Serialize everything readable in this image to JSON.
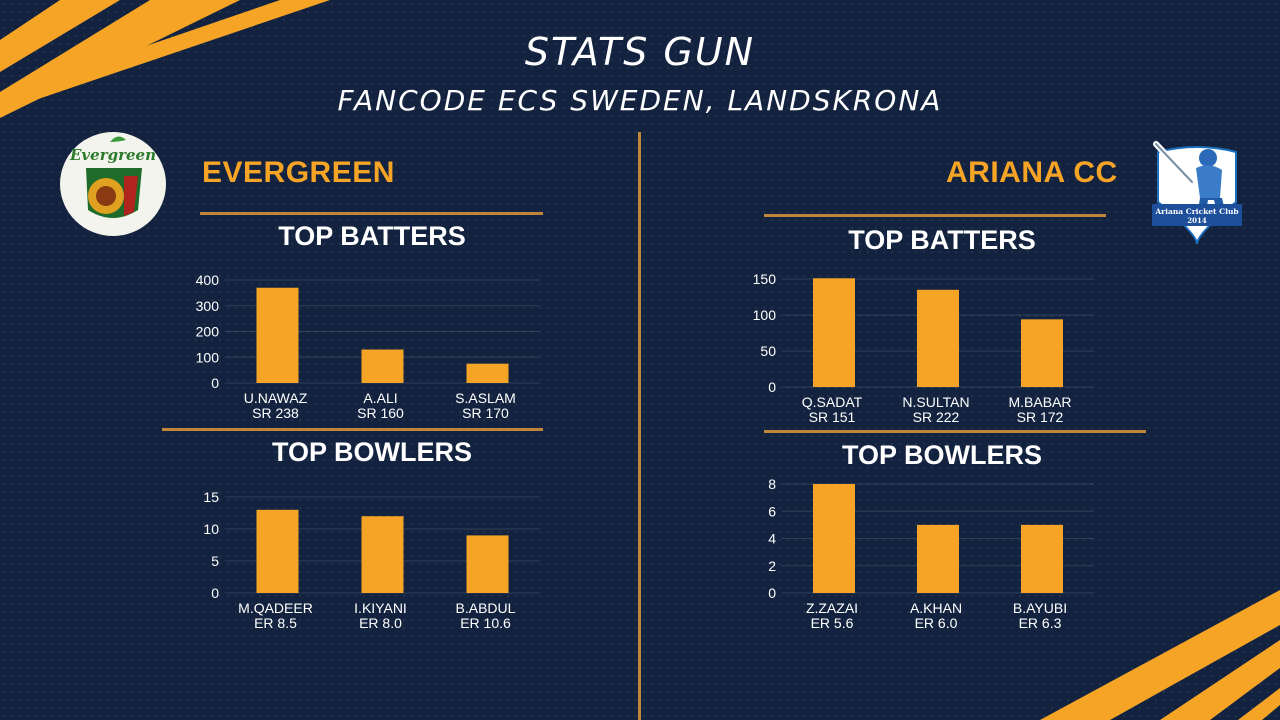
{
  "header": {
    "title": "STATS GUN",
    "subtitle": "FANCODE ECS SWEDEN, LANDSKRONA"
  },
  "colors": {
    "background": "#13233f",
    "accent": "#f5a425",
    "divider": "#c0873a",
    "text": "#ffffff"
  },
  "teams": [
    {
      "name": "EVERGREEN",
      "logo_text": "Evergreen"
    },
    {
      "name": "ARIANA CC",
      "logo_text": "Ariana Cricket Club 2014"
    }
  ],
  "sections": {
    "batters_title": "TOP BATTERS",
    "bowlers_title": "TOP BOWLERS"
  },
  "chart_data": [
    {
      "id": "evergreen-batters",
      "type": "bar",
      "title": "TOP BATTERS",
      "categories": [
        "U.NAWAZ",
        "A.ALI",
        "S.ASLAM"
      ],
      "sublabels": [
        "SR 238",
        "SR 160",
        "SR 170"
      ],
      "values": [
        370,
        130,
        75
      ],
      "ylim": [
        0,
        400
      ],
      "yticks": [
        0,
        100,
        200,
        300,
        400
      ],
      "grid": true
    },
    {
      "id": "evergreen-bowlers",
      "type": "bar",
      "title": "TOP BOWLERS",
      "categories": [
        "M.QADEER",
        "I.KIYANI",
        "B.ABDUL"
      ],
      "sublabels": [
        "ER 8.5",
        "ER 8.0",
        "ER 10.6"
      ],
      "values": [
        13,
        12,
        9
      ],
      "ylim": [
        0,
        15
      ],
      "yticks": [
        0,
        5,
        10,
        15
      ],
      "grid": true
    },
    {
      "id": "ariana-batters",
      "type": "bar",
      "title": "TOP BATTERS",
      "categories": [
        "Q.SADAT",
        "N.SULTAN",
        "M.BABAR"
      ],
      "sublabels": [
        "SR 151",
        "SR 222",
        "SR 172"
      ],
      "values": [
        151,
        135,
        94
      ],
      "ylim": [
        0,
        150
      ],
      "yticks": [
        0,
        50,
        100,
        150
      ],
      "grid": true
    },
    {
      "id": "ariana-bowlers",
      "type": "bar",
      "title": "TOP BOWLERS",
      "categories": [
        "Z.ZAZAI",
        "A.KHAN",
        "B.AYUBI"
      ],
      "sublabels": [
        "ER 5.6",
        "ER 6.0",
        "ER 6.3"
      ],
      "values": [
        8,
        5,
        5
      ],
      "ylim": [
        0,
        8
      ],
      "yticks": [
        0,
        2,
        4,
        6,
        8
      ],
      "grid": true
    }
  ]
}
